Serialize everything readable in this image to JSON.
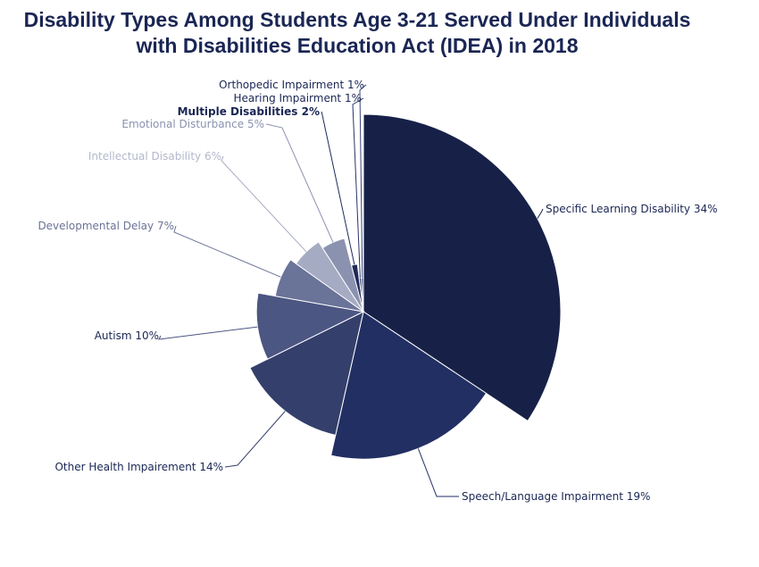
{
  "chart_data": {
    "type": "pie",
    "variant": "variable-radius pie (radius encodes value)",
    "title_lines": [
      "Disability Types Among Students Age 3-21 Served Under Individuals",
      "with Disabilities Education Act (IDEA) in 2018"
    ],
    "slices": [
      {
        "label": "Specific Learning Disability 34%",
        "value": 34,
        "color": "#172148"
      },
      {
        "label": "Speech/Language Impairment 19%",
        "value": 19,
        "color": "#222f63"
      },
      {
        "label": "Other Health Impairement 14%",
        "value": 14,
        "color": "#343f6b"
      },
      {
        "label": "Autism 10%",
        "value": 10,
        "color": "#4c5682"
      },
      {
        "label": "Developmental Delay 7%",
        "value": 7,
        "color": "#6a7398"
      },
      {
        "label": "Intellectual Disability 6%",
        "value": 6,
        "color": "#a5abc2"
      },
      {
        "label": "Emotional Disturbance 5%",
        "value": 5,
        "color": "#8b92b0"
      },
      {
        "label": "Multiple Disabilities 2%",
        "value": 2,
        "color": "#1f2a5a"
      },
      {
        "label": "Hearing Impairment 1%",
        "value": 1,
        "color": "#2a3566"
      },
      {
        "label": "Orthopedic Impairment 1%",
        "value": 1,
        "color": "#39447a"
      }
    ]
  }
}
